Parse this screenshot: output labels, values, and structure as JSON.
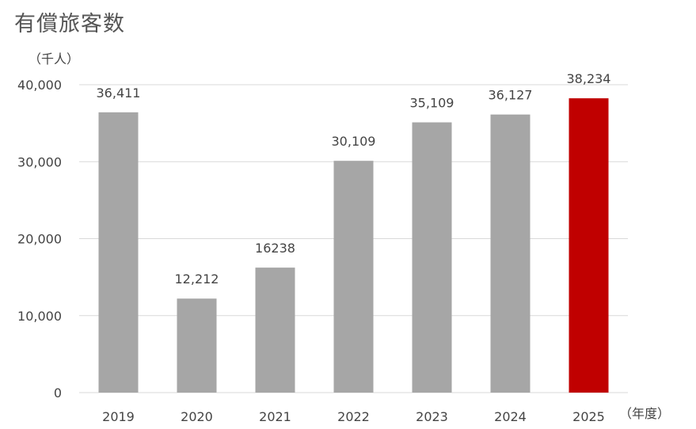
{
  "chart_data": {
    "type": "bar",
    "title": "有償旅客数",
    "ylabel": "（千人）",
    "xlabel": "（年度）",
    "categories": [
      "2019",
      "2020",
      "2021",
      "2022",
      "2023",
      "2024",
      "2025"
    ],
    "values": [
      36411,
      12212,
      16238,
      30109,
      35109,
      36127,
      38234
    ],
    "data_labels": [
      "36,411",
      "12,212",
      "16238",
      "30,109",
      "35,109",
      "36,127",
      "38,234"
    ],
    "yticks": [
      "0",
      "10,000",
      "20,000",
      "30,000",
      "40,000"
    ],
    "ylim": [
      0,
      40000
    ],
    "grid": true,
    "colors": {
      "default_bar": "#a6a6a6",
      "highlight_bar": "#c00000",
      "gridline": "#d9d9d9"
    },
    "highlight_index": 6
  }
}
